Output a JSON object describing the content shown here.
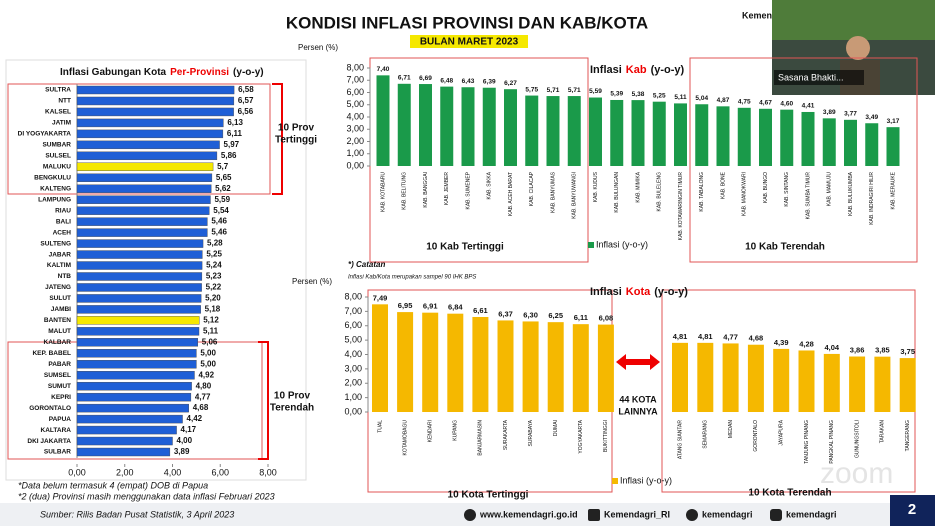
{
  "page": {
    "title": "KONDISI INFLASI PROVINSI DAN KAB/KOTA",
    "subtitle": "BULAN MARET 2023",
    "brand": "Kemend",
    "video_label": "Sasana Bhakti...",
    "notes": [
      "*Data belum termasuk 4 (empat) DOB di Papua",
      "*2 (dua) Provinsi masih menggunakan data inflasi Februari 2023"
    ],
    "catatan": "*) Catatan",
    "catatan_text": "Inflasi Kab/Kota merupakan sampel 90 IHK BPS",
    "source": "Sumber: Rilis Badan Pusat Statistik, 3 April 2023",
    "website": "www.kemendagri.go.id",
    "social": [
      "Kemendagri_RI",
      "kemendagri",
      "kemendagri"
    ],
    "watermark": "zoom",
    "page_number": "2"
  },
  "chart_data": [
    {
      "type": "bar",
      "orientation": "horizontal",
      "title": [
        "Inflasi Gabungan Kota",
        "Per-Provinsi",
        "(y-o-y)"
      ],
      "categories": [
        "SULTRA",
        "NTT",
        "KALSEL",
        "JATIM",
        "DI YOGYAKARTA",
        "SUMBAR",
        "SULSEL",
        "MALUKU",
        "BENGKULU",
        "KALTENG",
        "LAMPUNG",
        "RIAU",
        "BALI",
        "ACEH",
        "SULTENG",
        "JABAR",
        "KALTIM",
        "NTB",
        "JATENG",
        "SULUT",
        "JAMBI",
        "BANTEN",
        "MALUT",
        "KALBAR",
        "KEP. BABEL",
        "PABAR",
        "SUMSEL",
        "SUMUT",
        "KEPRI",
        "GORONTALO",
        "PAPUA",
        "KALTARA",
        "DKI JAKARTA",
        "SULBAR"
      ],
      "values": [
        6.58,
        6.57,
        6.56,
        6.13,
        6.11,
        5.97,
        5.86,
        5.7,
        5.65,
        5.62,
        5.59,
        5.54,
        5.46,
        5.46,
        5.28,
        5.25,
        5.24,
        5.23,
        5.22,
        5.2,
        5.18,
        5.12,
        5.11,
        5.06,
        5.0,
        5.0,
        4.92,
        4.8,
        4.77,
        4.68,
        4.42,
        4.17,
        4.0,
        3.89
      ],
      "value_labels": [
        "6,58",
        "6,57",
        "6,56",
        "6,13",
        "6,11",
        "5,97",
        "5,86",
        "5,7",
        "5,65",
        "5,62",
        "5,59",
        "5,54",
        "5,46",
        "5,46",
        "5,28",
        "5,25",
        "5,24",
        "5,23",
        "5,22",
        "5,20",
        "5,18",
        "5,12",
        "5,11",
        "5,06",
        "5,00",
        "5,00",
        "4,92",
        "4,80",
        "4,77",
        "4,68",
        "4,42",
        "4,17",
        "4,00",
        "3,89"
      ],
      "colors": [
        "#1f5fd6",
        "#1f5fd6",
        "#1f5fd6",
        "#1f5fd6",
        "#1f5fd6",
        "#1f5fd6",
        "#1f5fd6",
        "#f5e800",
        "#1f5fd6",
        "#1f5fd6",
        "#1f5fd6",
        "#1f5fd6",
        "#1f5fd6",
        "#1f5fd6",
        "#1f5fd6",
        "#1f5fd6",
        "#1f5fd6",
        "#1f5fd6",
        "#1f5fd6",
        "#1f5fd6",
        "#1f5fd6",
        "#f5e800",
        "#1f5fd6",
        "#1f5fd6",
        "#1f5fd6",
        "#1f5fd6",
        "#1f5fd6",
        "#1f5fd6",
        "#1f5fd6",
        "#1f5fd6",
        "#1f5fd6",
        "#1f5fd6",
        "#1f5fd6",
        "#1f5fd6"
      ],
      "xlim": [
        0,
        8
      ],
      "xticks": [
        {
          "value": 0,
          "label": "0,00"
        },
        {
          "value": 2,
          "label": "2,00"
        },
        {
          "value": 4,
          "label": "4,00"
        },
        {
          "value": 6,
          "label": "6,00"
        },
        {
          "value": 8,
          "label": "8,00"
        }
      ],
      "grid": false,
      "group_labels": [
        [
          "10 Prov",
          "Tertinggi"
        ],
        [
          "10 Prov",
          "Terendah"
        ]
      ]
    },
    {
      "type": "bar",
      "orientation": "vertical",
      "title": [
        "Inflasi",
        "Kab",
        "(y-o-y)"
      ],
      "y_label": "Persen (%)",
      "categories": [
        "KAB. KOTABARU",
        "KAB. BELITUNG",
        "KAB. BANGGAI",
        "KAB. JEMBER",
        "KAB. SUMENEP",
        "KAB. SIKKA",
        "KAB. ACEH BARAT",
        "KAB. CILACAP",
        "KAB. BANYUMAS",
        "KAB. BANYUWANGI",
        "KAB. KUDUS",
        "KAB. BULUNGAN",
        "KAB. MIMIKA",
        "KAB. BULELENG",
        "KAB. KOTAWARINGIN TIMUR",
        "KAB. TABALONG",
        "KAB. BONE",
        "KAB. MANOKWARI",
        "KAB. BUNGO",
        "KAB. SINTANG",
        "KAB. SUMBA TIMUR",
        "KAB. MAMUJU",
        "KAB. BULUKUMBA",
        "KAB. INDRAGIRI HILIR",
        "KAB. MERAUKE"
      ],
      "series": [
        {
          "name": "Inflasi (y-o-y)",
          "color": "#1a9a4a",
          "values": [
            7.4,
            6.71,
            6.69,
            6.48,
            6.43,
            6.39,
            6.27,
            5.75,
            5.71,
            5.71,
            5.59,
            5.39,
            5.38,
            5.25,
            5.11,
            5.04,
            4.87,
            4.75,
            4.67,
            4.6,
            4.41,
            3.89,
            3.77,
            3.49,
            3.17
          ],
          "value_labels": [
            "7,40",
            "6,71",
            "6,69",
            "6,48",
            "6,43",
            "6,39",
            "6,27",
            "5,75",
            "5,71",
            "5,71",
            "5,59",
            "5,39",
            "5,38",
            "5,25",
            "5,11",
            "5,04",
            "4,87",
            "4,75",
            "4,67",
            "4,60",
            "4,41",
            "3,89",
            "3,77",
            "3,49",
            "3,17"
          ]
        }
      ],
      "ylim": [
        0,
        8
      ],
      "yticks": [
        {
          "value": 0,
          "label": "0,00"
        },
        {
          "value": 1,
          "label": "1,00"
        },
        {
          "value": 2,
          "label": "2,00"
        },
        {
          "value": 3,
          "label": "3,00"
        },
        {
          "value": 4,
          "label": "4,00"
        },
        {
          "value": 5,
          "label": "5,00"
        },
        {
          "value": 6,
          "label": "6,00"
        },
        {
          "value": 7,
          "label": "7,00"
        },
        {
          "value": 8,
          "label": "8,00"
        }
      ],
      "grid": false,
      "group_labels": [
        "10 Kab Tertinggi",
        "10 Kab Terendah"
      ]
    },
    {
      "type": "bar",
      "orientation": "vertical",
      "title": [
        "Inflasi",
        "Kota",
        "(y-o-y)"
      ],
      "y_label": "Persen (%)",
      "categories": [
        "TUAL",
        "KOTAMOBAGU",
        "KENDARI",
        "KUPANG",
        "BANJARMASIN",
        "SURAKARTA",
        "SURABAYA",
        "DUMAI",
        "YOGYAKARTA",
        "BUKITTINGGI",
        "ATANG SIANTAR",
        "SEMARANG",
        "MEDAN",
        "GORONTALO",
        "JAYAPURA",
        "TANJUNG PINANG",
        "PANGKAL PINANG",
        "GUNUNGSITOLI",
        "TARAKAN",
        "TANGERANG"
      ],
      "series": [
        {
          "name": "Inflasi (y-o-y)",
          "color": "#f5b800",
          "values": [
            7.49,
            6.95,
            6.91,
            6.84,
            6.61,
            6.37,
            6.3,
            6.25,
            6.11,
            6.08,
            4.81,
            4.81,
            4.77,
            4.68,
            4.39,
            4.28,
            4.04,
            3.86,
            3.85,
            3.75
          ],
          "value_labels": [
            "7,49",
            "6,95",
            "6,91",
            "6,84",
            "6,61",
            "6,37",
            "6,30",
            "6,25",
            "6,11",
            "6,08",
            "4,81",
            "4,81",
            "4,77",
            "4,68",
            "4,39",
            "4,28",
            "4,04",
            "3,86",
            "3,85",
            "3,75"
          ]
        }
      ],
      "ylim": [
        0,
        8
      ],
      "yticks": [
        {
          "value": 0,
          "label": "0,00"
        },
        {
          "value": 1,
          "label": "1,00"
        },
        {
          "value": 2,
          "label": "2,00"
        },
        {
          "value": 3,
          "label": "3,00"
        },
        {
          "value": 4,
          "label": "4,00"
        },
        {
          "value": 5,
          "label": "5,00"
        },
        {
          "value": 6,
          "label": "6,00"
        },
        {
          "value": 7,
          "label": "7,00"
        },
        {
          "value": 8,
          "label": "8,00"
        }
      ],
      "grid": false,
      "group_labels": [
        "10 Kota Tertinggi",
        "10 Kota Terendah"
      ],
      "middle_label": [
        "44 KOTA",
        "LAINNYA"
      ]
    }
  ]
}
